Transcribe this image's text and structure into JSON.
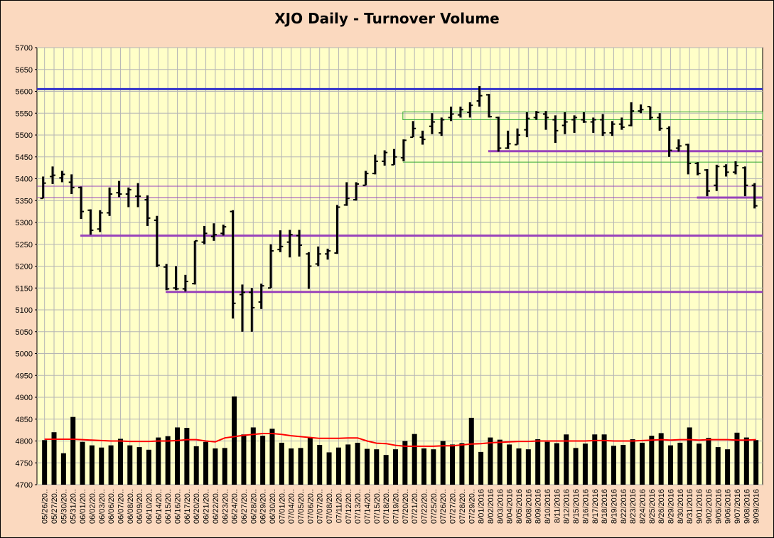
{
  "chart_data": {
    "type": "bar",
    "title": "XJO Daily - Turnover Volume",
    "xlabel": "",
    "ylabel": "",
    "ylim": [
      4700,
      5700
    ],
    "y_ticks": [
      4700,
      4750,
      4800,
      4850,
      4900,
      4950,
      5000,
      5050,
      5100,
      5150,
      5200,
      5250,
      5300,
      5350,
      5400,
      5450,
      5500,
      5550,
      5600,
      5650,
      5700
    ],
    "grid": true,
    "legend": "none",
    "colors": {
      "plot_bg": "#ffffc8",
      "page_bg": "#fbd9bf",
      "grid": "#b5b5b5",
      "ohlc": "#000000",
      "volume": "#000000",
      "volume_avg": "#ff0000",
      "resistance": "#3333cc",
      "support": "#9944bb",
      "band": "#33aa33"
    },
    "dates": [
      "05/26/20..",
      "05/27/20..",
      "05/30/20..",
      "05/31/20..",
      "06/01/20..",
      "06/02/20..",
      "06/03/20..",
      "06/06/20..",
      "06/07/20..",
      "06/08/20..",
      "06/09/20..",
      "06/10/20..",
      "06/14/20..",
      "06/15/20..",
      "06/16/20..",
      "06/17/20..",
      "06/20/20..",
      "06/21/20..",
      "06/22/20..",
      "06/23/20..",
      "06/24/20..",
      "06/27/20..",
      "06/28/20..",
      "06/29/20..",
      "06/30/20..",
      "07/01/20..",
      "07/04/20..",
      "07/05/20..",
      "07/06/20..",
      "07/07/20..",
      "07/08/20..",
      "07/11/20..",
      "07/12/20..",
      "07/13/20..",
      "07/14/20..",
      "07/15/20..",
      "07/18/20..",
      "07/19/20..",
      "07/20/20..",
      "07/21/20..",
      "07/22/20..",
      "07/25/20..",
      "07/26/20..",
      "07/27/20..",
      "07/28/20..",
      "07/29/20..",
      "8/01/2016",
      "8/02/2016",
      "8/03/2016",
      "8/04/2016",
      "8/05/2016",
      "8/08/2016",
      "8/09/2016",
      "8/10/2016",
      "8/11/2016",
      "8/12/2016",
      "8/15/2016",
      "8/16/2016",
      "8/17/2016",
      "8/18/2016",
      "8/19/2016",
      "8/22/2016",
      "8/23/2016",
      "8/24/2016",
      "8/25/2016",
      "8/26/2016",
      "8/29/2016",
      "8/30/2016",
      "8/31/2016",
      "9/01/2016",
      "9/02/2016",
      "9/05/2016",
      "9/06/2016",
      "9/07/2016",
      "9/08/2016",
      "9/09/2016"
    ],
    "ohlc": [
      [
        5355,
        5405,
        5355,
        5390
      ],
      [
        5405,
        5428,
        5388,
        5408
      ],
      [
        5402,
        5418,
        5392,
        5410
      ],
      [
        5392,
        5410,
        5365,
        5380
      ],
      [
        5380,
        5382,
        5308,
        5325
      ],
      [
        5328,
        5330,
        5272,
        5282
      ],
      [
        5285,
        5328,
        5278,
        5322
      ],
      [
        5322,
        5380,
        5315,
        5365
      ],
      [
        5368,
        5395,
        5358,
        5365
      ],
      [
        5365,
        5380,
        5335,
        5375
      ],
      [
        5360,
        5390,
        5335,
        5360
      ],
      [
        5352,
        5362,
        5292,
        5310
      ],
      [
        5305,
        5315,
        5198,
        5202
      ],
      [
        5198,
        5205,
        5145,
        5148
      ],
      [
        5150,
        5200,
        5145,
        5148
      ],
      [
        5148,
        5180,
        5142,
        5165
      ],
      [
        5160,
        5258,
        5158,
        5258
      ],
      [
        5255,
        5292,
        5250,
        5275
      ],
      [
        5268,
        5298,
        5258,
        5272
      ],
      [
        5275,
        5295,
        5270,
        5290
      ],
      [
        5325,
        5328,
        5080,
        5115
      ],
      [
        5135,
        5158,
        5050,
        5140
      ],
      [
        5140,
        5150,
        5050,
        5105
      ],
      [
        5118,
        5160,
        5102,
        5155
      ],
      [
        5150,
        5250,
        5150,
        5235
      ],
      [
        5238,
        5282,
        5232,
        5245
      ],
      [
        5255,
        5283,
        5220,
        5272
      ],
      [
        5270,
        5283,
        5222,
        5248
      ],
      [
        5228,
        5232,
        5148,
        5200
      ],
      [
        5205,
        5245,
        5200,
        5228
      ],
      [
        5228,
        5240,
        5215,
        5235
      ],
      [
        5230,
        5340,
        5228,
        5335
      ],
      [
        5340,
        5392,
        5338,
        5355
      ],
      [
        5352,
        5392,
        5350,
        5388
      ],
      [
        5385,
        5418,
        5385,
        5412
      ],
      [
        5412,
        5455,
        5410,
        5440
      ],
      [
        5440,
        5465,
        5430,
        5460
      ],
      [
        5432,
        5468,
        5432,
        5450
      ],
      [
        5448,
        5490,
        5440,
        5488
      ],
      [
        5495,
        5532,
        5495,
        5515
      ],
      [
        5495,
        5510,
        5478,
        5490
      ],
      [
        5520,
        5550,
        5502,
        5530
      ],
      [
        5505,
        5540,
        5498,
        5535
      ],
      [
        5540,
        5565,
        5532,
        5548
      ],
      [
        5546,
        5565,
        5540,
        5558
      ],
      [
        5552,
        5575,
        5540,
        5568
      ],
      [
        5578,
        5612,
        5565,
        5590
      ],
      [
        5592,
        5594,
        5540,
        5542
      ],
      [
        5540,
        5542,
        5462,
        5470
      ],
      [
        5470,
        5510,
        5468,
        5480
      ],
      [
        5478,
        5515,
        5478,
        5500
      ],
      [
        5512,
        5552,
        5495,
        5538
      ],
      [
        5540,
        5555,
        5535,
        5552
      ],
      [
        5548,
        5555,
        5512,
        5540
      ],
      [
        5535,
        5545,
        5482,
        5510
      ],
      [
        5522,
        5552,
        5502,
        5530
      ],
      [
        5535,
        5545,
        5505,
        5540
      ],
      [
        5535,
        5552,
        5528,
        5530
      ],
      [
        5530,
        5540,
        5505,
        5535
      ],
      [
        5535,
        5548,
        5498,
        5505
      ],
      [
        5505,
        5532,
        5498,
        5525
      ],
      [
        5525,
        5540,
        5512,
        5518
      ],
      [
        5522,
        5575,
        5520,
        5555
      ],
      [
        5555,
        5570,
        5550,
        5558
      ],
      [
        5565,
        5565,
        5535,
        5540
      ],
      [
        5540,
        5550,
        5510,
        5515
      ],
      [
        5515,
        5520,
        5450,
        5465
      ],
      [
        5470,
        5490,
        5462,
        5475
      ],
      [
        5478,
        5480,
        5410,
        5435
      ],
      [
        5435,
        5438,
        5408,
        5412
      ],
      [
        5420,
        5422,
        5360,
        5372
      ],
      [
        5385,
        5432,
        5372,
        5428
      ],
      [
        5428,
        5433,
        5405,
        5415
      ],
      [
        5415,
        5440,
        5410,
        5430
      ],
      [
        5425,
        5428,
        5360,
        5385
      ],
      [
        5385,
        5390,
        5332,
        5338
      ]
    ],
    "volume": [
      4802,
      4820,
      4772,
      4855,
      4798,
      4790,
      4785,
      4790,
      4805,
      4790,
      4786,
      4780,
      4808,
      4811,
      4831,
      4830,
      4788,
      4798,
      4783,
      4784,
      4902,
      4815,
      4831,
      4812,
      4828,
      4796,
      4783,
      4784,
      4809,
      4791,
      4774,
      4785,
      4792,
      4796,
      4782,
      4781,
      4768,
      4781,
      4800,
      4816,
      4783,
      4781,
      4800,
      4792,
      4795,
      4853,
      4775,
      4808,
      4803,
      4792,
      4783,
      4781,
      4804,
      4798,
      4795,
      4815,
      4784,
      4794,
      4815,
      4815,
      4789,
      4791,
      4804,
      4796,
      4812,
      4818,
      4790,
      4796,
      4831,
      4794,
      4807,
      4786,
      4781,
      4819,
      4808,
      4802
    ],
    "volume_avg": [
      4804,
      4804,
      4804,
      4804,
      4803,
      4802,
      4801,
      4800,
      4800,
      4799,
      4799,
      4799,
      4800,
      4800,
      4801,
      4803,
      4803,
      4800,
      4798,
      4807,
      4810,
      4813,
      4815,
      4817,
      4817,
      4815,
      4812,
      4810,
      4808,
      4806,
      4806,
      4806,
      4807,
      4807,
      4800,
      4795,
      4794,
      4790,
      4788,
      4788,
      4788,
      4788,
      4789,
      4789,
      4791,
      4793,
      4794,
      4796,
      4797,
      4798,
      4799,
      4799,
      4800,
      4800,
      4800,
      4800,
      4800,
      4800,
      4801,
      4801,
      4800,
      4800,
      4800,
      4801,
      4802,
      4803,
      4802,
      4803,
      4803,
      4802,
      4803,
      4803,
      4803,
      4802,
      4802,
      4803
    ],
    "levels": [
      {
        "value": 5605,
        "from_index": 0,
        "style": "resistance-thick"
      },
      {
        "value": 5463,
        "from_index": 47,
        "style": "support-medium"
      },
      {
        "value": 5383,
        "from_index": 0,
        "style": "support-thin"
      },
      {
        "value": 5357,
        "from_index": 0,
        "style": "support-thin"
      },
      {
        "value": 5357,
        "from_index": 69,
        "style": "support-medium"
      },
      {
        "value": 5270,
        "from_index": 4,
        "style": "support-medium"
      },
      {
        "value": 5141,
        "from_index": 13,
        "style": "support-medium"
      }
    ],
    "bands": [
      {
        "top": 5553,
        "bottom": 5535,
        "from_index": 38
      },
      {
        "top": 5438,
        "bottom": 5438,
        "from_index": 38
      }
    ]
  }
}
